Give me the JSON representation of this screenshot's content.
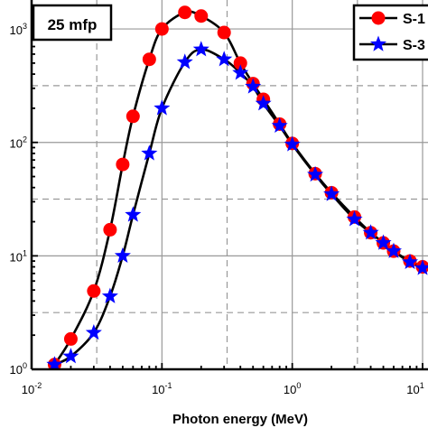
{
  "chart_data": {
    "type": "line",
    "xscale": "log",
    "yscale": "log",
    "xlim": [
      0.01,
      10
    ],
    "ylim": [
      1,
      1800
    ],
    "xlabel": "Photon energy (MeV)",
    "ylabel": "",
    "x_ticks": [
      {
        "base": "10",
        "exp": "-2"
      },
      {
        "base": "10",
        "exp": "-1"
      },
      {
        "base": "10",
        "exp": "0"
      },
      {
        "base": "10",
        "exp": "1"
      }
    ],
    "y_ticks": [
      {
        "base": "10",
        "exp": "0"
      },
      {
        "base": "10",
        "exp": "1"
      },
      {
        "base": "10",
        "exp": "2"
      },
      {
        "base": "10",
        "exp": "3"
      }
    ],
    "annotation": "25 mfp",
    "grid": true,
    "legend_position": "top-right",
    "series": [
      {
        "name": "S-1",
        "marker": "circle",
        "color": "#ff0000",
        "x": [
          0.015,
          0.02,
          0.03,
          0.04,
          0.05,
          0.06,
          0.08,
          0.1,
          0.15,
          0.2,
          0.3,
          0.4,
          0.5,
          0.6,
          0.8,
          1.0,
          1.5,
          2.0,
          3.0,
          4.0,
          5.0,
          6.0,
          8.0,
          10.0
        ],
        "y": [
          1.1,
          1.85,
          4.9,
          17,
          64,
          170,
          540,
          1000,
          1400,
          1300,
          930,
          500,
          330,
          240,
          145,
          98,
          53,
          36,
          22,
          16,
          13,
          11,
          9,
          8
        ]
      },
      {
        "name": "S-3",
        "marker": "star",
        "color": "#0000ff",
        "x": [
          0.015,
          0.02,
          0.03,
          0.04,
          0.05,
          0.06,
          0.08,
          0.1,
          0.15,
          0.2,
          0.3,
          0.4,
          0.5,
          0.6,
          0.8,
          1.0,
          1.5,
          2.0,
          3.0,
          4.0,
          5.0,
          6.0,
          8.0,
          10.0
        ],
        "y": [
          1.1,
          1.3,
          2.1,
          4.4,
          10,
          23,
          80,
          200,
          510,
          660,
          540,
          410,
          310,
          220,
          140,
          96,
          52,
          35,
          21,
          16,
          13,
          11,
          8.8,
          7.8
        ]
      }
    ]
  },
  "colors": {
    "grid": "#999999",
    "line": "#000000"
  }
}
